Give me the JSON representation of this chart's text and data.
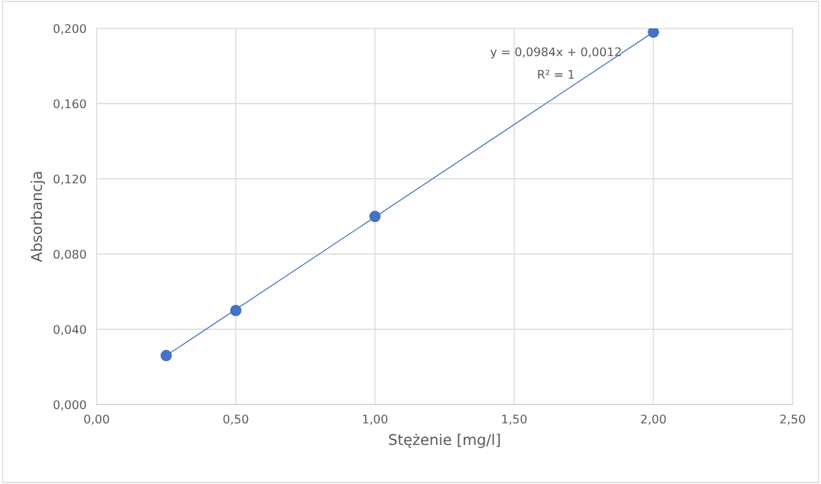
{
  "chart_data": {
    "type": "scatter",
    "xlabel": "Stężenie [mg/l]",
    "ylabel": "Absorbancja",
    "series": [
      {
        "color": "#4472c4",
        "x": [
          0.25,
          0.5,
          1.0,
          2.0
        ],
        "values": [
          0.026,
          0.05,
          0.1,
          0.198
        ],
        "marker": "circle"
      },
      {
        "type": "line",
        "color": "#4472c4",
        "x": [
          0.25,
          2.0
        ],
        "values": [
          0.026,
          0.198
        ],
        "marker": "none",
        "line_style": "solid"
      }
    ],
    "annotations": [
      "y = 0,0984x + 0,0012",
      "R² = 1"
    ],
    "xlim": [
      0,
      2.5
    ],
    "xticks": [
      {
        "value": 0,
        "label": "0,00"
      },
      {
        "value": 0.5,
        "label": "0,50"
      },
      {
        "value": 1.0,
        "label": "1,00"
      },
      {
        "value": 1.5,
        "label": "1,50"
      },
      {
        "value": 2.0,
        "label": "2,00"
      },
      {
        "value": 2.5,
        "label": "2,50"
      }
    ],
    "ylim": [
      0,
      0.2
    ],
    "yticks": [
      {
        "value": 0,
        "label": "0,000"
      },
      {
        "value": 0.04,
        "label": "0,040"
      },
      {
        "value": 0.08,
        "label": "0,080"
      },
      {
        "value": 0.12,
        "label": "0,120"
      },
      {
        "value": 0.16,
        "label": "0,160"
      },
      {
        "value": 0.2,
        "label": "0,200"
      }
    ],
    "grid": true
  }
}
